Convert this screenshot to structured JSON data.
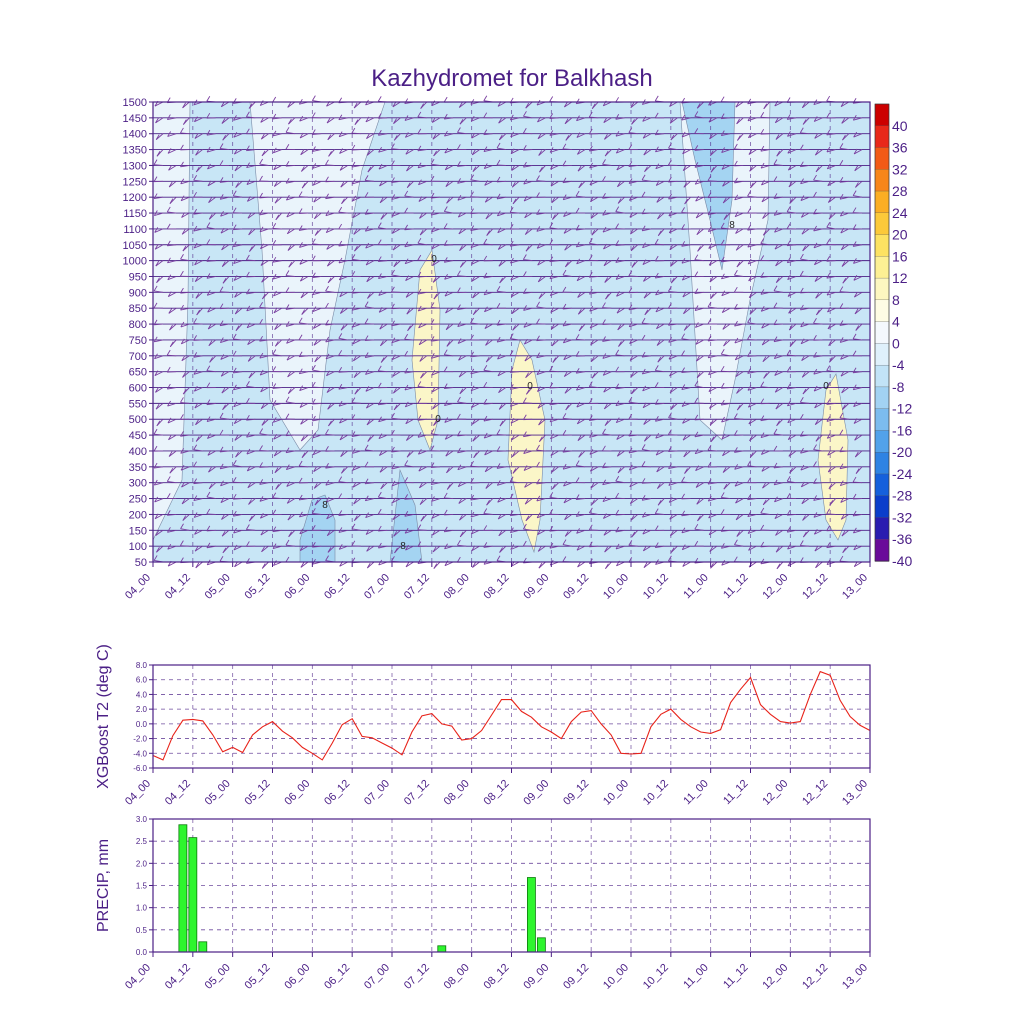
{
  "title": "Kazhydromet for Balkhash",
  "colors": {
    "frame": "#4b1f86",
    "line": "#e8231a",
    "bar": "#2ef52e",
    "barEdge": "#0a7a0a",
    "barb": "#7a3fa0",
    "warm": "#fbf6c8",
    "cold8": "#c8e6f6",
    "cold12": "#a4d4f2",
    "cold0": "#eaf4fb"
  },
  "time_labels": [
    "04_00",
    "04_12",
    "05_00",
    "05_12",
    "06_00",
    "06_12",
    "07_00",
    "07_12",
    "08_00",
    "08_12",
    "09_00",
    "09_12",
    "10_00",
    "10_12",
    "11_00",
    "11_12",
    "12_00",
    "12_12",
    "13_00"
  ],
  "chart_data": [
    {
      "type": "heatmap",
      "title": "Kazhydromet for Balkhash",
      "x_ticks": [
        "04_00",
        "04_12",
        "05_00",
        "05_12",
        "06_00",
        "06_12",
        "07_00",
        "07_12",
        "08_00",
        "08_12",
        "09_00",
        "09_12",
        "10_00",
        "10_12",
        "11_00",
        "11_12",
        "12_00",
        "12_12",
        "13_00"
      ],
      "y_ticks": [
        50,
        100,
        150,
        200,
        250,
        300,
        350,
        400,
        450,
        500,
        550,
        600,
        650,
        700,
        750,
        800,
        850,
        900,
        950,
        1000,
        1050,
        1100,
        1150,
        1200,
        1250,
        1300,
        1350,
        1400,
        1450,
        1500
      ],
      "ylim": [
        50,
        1500
      ],
      "colorbar": {
        "labels": [
          "40",
          "36",
          "32",
          "28",
          "24",
          "20",
          "16",
          "12",
          "8",
          "4",
          "0",
          "-4",
          "-8",
          "-12",
          "-16",
          "-20",
          "-24",
          "-28",
          "-32",
          "-36",
          "-40"
        ],
        "colors": [
          "#cc0000",
          "#e8281a",
          "#f25a16",
          "#f7861a",
          "#fbae24",
          "#fcc93a",
          "#fde262",
          "#fdf094",
          "#fdf7c0",
          "#fefce4",
          "#f4f8fd",
          "#dff0fb",
          "#c2e3f7",
          "#a2d2f3",
          "#7cbcef",
          "#52a2ea",
          "#2f83e3",
          "#1560dc",
          "#0b3ecb",
          "#2a1cb0",
          "#6a0a9a"
        ]
      },
      "contour_labels": [
        "8",
        "0",
        "0",
        "0",
        "0",
        "8",
        "8"
      ],
      "wind_barbs": true
    },
    {
      "type": "line",
      "ylabel": "XGBoost T2 (deg C)",
      "ylim": [
        -6.0,
        8.0
      ],
      "y_ticks": [
        "8.0",
        "6.0",
        "4.0",
        "2.0",
        "0.0",
        "-2.0",
        "-4.0",
        "-6.0"
      ],
      "x_ticks": [
        "04_00",
        "04_12",
        "05_00",
        "05_12",
        "06_00",
        "06_12",
        "07_00",
        "07_12",
        "08_00",
        "08_12",
        "09_00",
        "09_12",
        "10_00",
        "10_12",
        "11_00",
        "11_12",
        "12_00",
        "12_12",
        "13_00"
      ],
      "x_step_hours": 3,
      "values": [
        -4.3,
        -4.9,
        -1.6,
        0.5,
        0.6,
        0.4,
        -1.5,
        -3.8,
        -3.2,
        -3.9,
        -1.5,
        -0.4,
        0.3,
        -1.0,
        -1.9,
        -3.2,
        -4.0,
        -4.9,
        -2.6,
        -0.1,
        0.7,
        -1.7,
        -1.9,
        -2.6,
        -3.3,
        -4.2,
        -1.1,
        1.1,
        1.4,
        0.0,
        -0.3,
        -2.2,
        -2.0,
        -0.9,
        1.2,
        3.3,
        3.3,
        1.7,
        0.9,
        -0.4,
        -1.1,
        -2.0,
        0.3,
        1.6,
        1.8,
        0.0,
        -1.5,
        -4.0,
        -4.1,
        -4.0,
        -0.4,
        1.3,
        2.0,
        0.6,
        -0.4,
        -1.1,
        -1.3,
        -0.8,
        2.9,
        4.7,
        6.3,
        2.6,
        1.3,
        0.3,
        0.1,
        0.3,
        4.0,
        7.1,
        6.6,
        3.2,
        1.0,
        -0.2,
        -0.9
      ]
    },
    {
      "type": "bar",
      "ylabel": "PRECIP, mm",
      "ylim": [
        0.0,
        3.0
      ],
      "y_ticks": [
        "3.0",
        "2.5",
        "2.0",
        "1.5",
        "1.0",
        "0.5",
        "0.0"
      ],
      "x_ticks": [
        "04_00",
        "04_12",
        "05_00",
        "05_12",
        "06_00",
        "06_12",
        "07_00",
        "07_12",
        "08_00",
        "08_12",
        "09_00",
        "09_12",
        "10_00",
        "10_12",
        "11_00",
        "11_12",
        "12_00",
        "12_12",
        "13_00"
      ],
      "bars": [
        {
          "hour": 9,
          "value": 2.87
        },
        {
          "hour": 12,
          "value": 2.58
        },
        {
          "hour": 15,
          "value": 0.23
        },
        {
          "hour": 87,
          "value": 0.14
        },
        {
          "hour": 114,
          "value": 1.68
        },
        {
          "hour": 117,
          "value": 0.32
        }
      ]
    }
  ]
}
